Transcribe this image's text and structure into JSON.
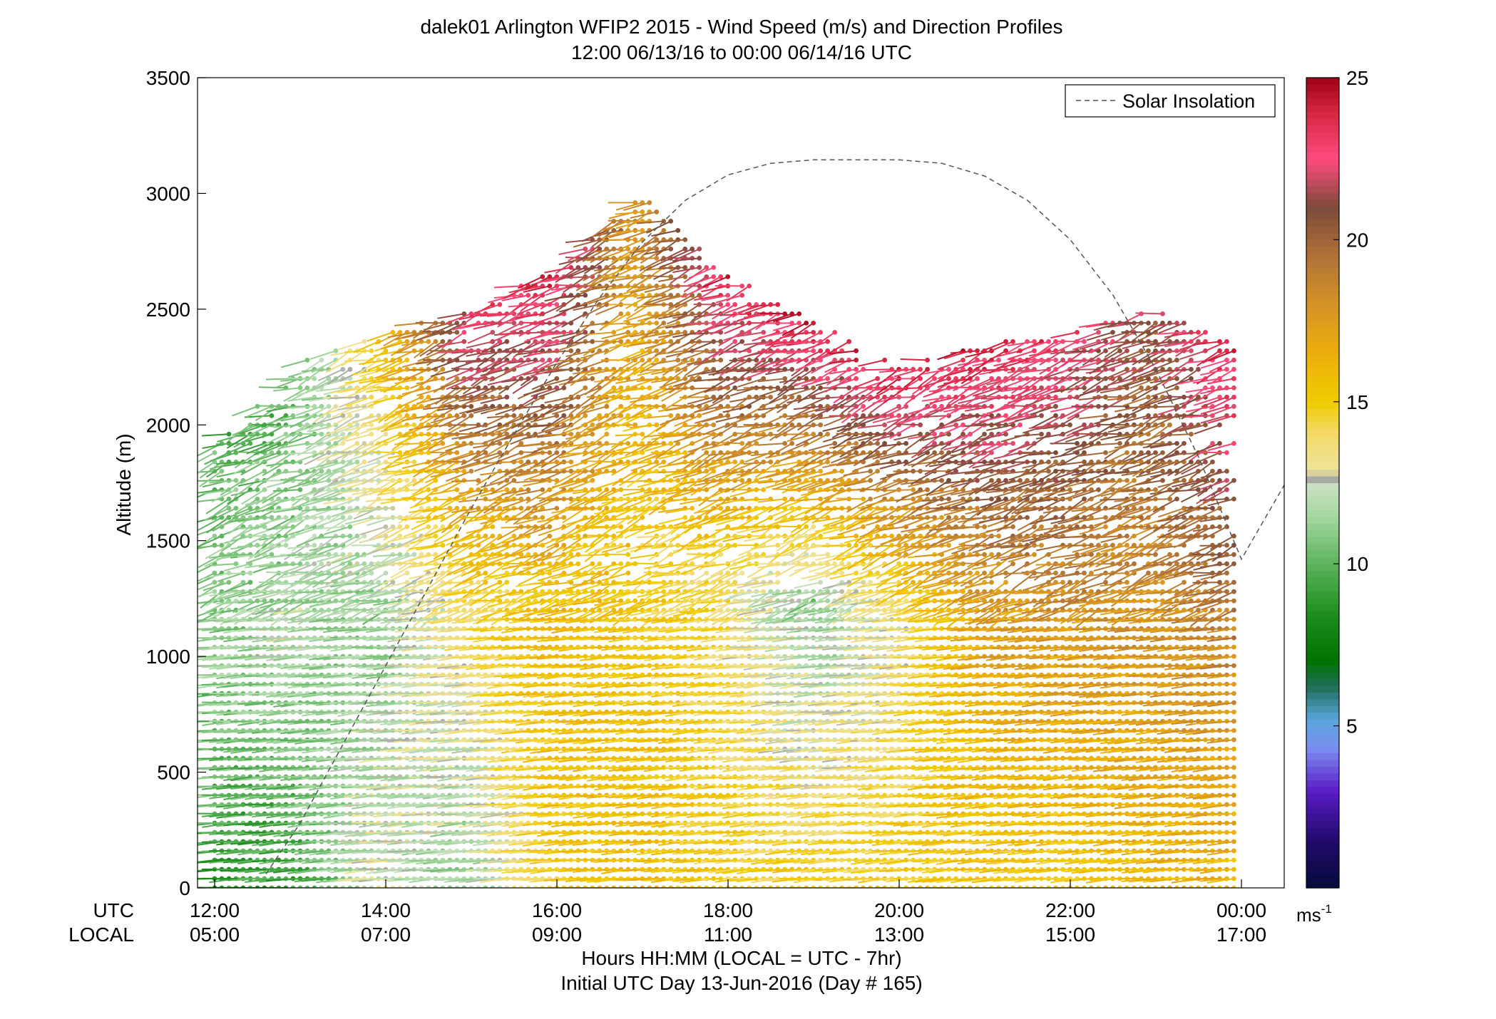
{
  "chart_data": {
    "type": "wind-barb-profile",
    "title": "dalek01 Arlington WFIP2 2015 - Wind Speed (m/s) and Direction Profiles",
    "subtitle": "12:00 06/13/16 to 00:00 06/14/16  UTC",
    "ylabel": "Altitude (m)",
    "xlabel": "Hours HH:MM  (LOCAL = UTC - 7hr)",
    "xlabel2": "Initial UTC Day 13-Jun-2016 (Day # 165)",
    "row_label_utc": "UTC",
    "row_label_local": "LOCAL",
    "x_range_hours_utc": [
      11.8,
      24.5
    ],
    "ylim": [
      0,
      3500
    ],
    "yticks": [
      0,
      500,
      1000,
      1500,
      2000,
      2500,
      3000,
      3500
    ],
    "xticks": [
      {
        "hour": 12,
        "utc": "12:00",
        "local": "05:00"
      },
      {
        "hour": 14,
        "utc": "14:00",
        "local": "07:00"
      },
      {
        "hour": 16,
        "utc": "16:00",
        "local": "09:00"
      },
      {
        "hour": 18,
        "utc": "18:00",
        "local": "11:00"
      },
      {
        "hour": 20,
        "utc": "20:00",
        "local": "13:00"
      },
      {
        "hour": 22,
        "utc": "22:00",
        "local": "15:00"
      },
      {
        "hour": 24,
        "utc": "00:00",
        "local": "17:00"
      }
    ],
    "legend": {
      "label": "Solar Insolation",
      "placement": "top-right",
      "style": "dashed",
      "color": "#555555"
    },
    "solar_curve": {
      "x_hours_utc": [
        12.6,
        13.0,
        13.5,
        14.0,
        14.5,
        15.0,
        15.5,
        16.0,
        16.5,
        17.0,
        17.5,
        18.0,
        18.5,
        19.0,
        19.5,
        20.0,
        20.5,
        21.0,
        21.5,
        22.0,
        22.5,
        23.0,
        23.5,
        24.0,
        24.5
      ],
      "altitude_m": [
        60,
        280,
        620,
        960,
        1300,
        1640,
        1960,
        2270,
        2550,
        2790,
        2970,
        3080,
        3130,
        3145,
        3145,
        3145,
        3130,
        3075,
        2970,
        2800,
        2560,
        2240,
        1860,
        1420,
        1740
      ]
    },
    "colorbar": {
      "ticks": [
        5,
        10,
        15,
        20,
        25
      ],
      "range": [
        0,
        25
      ],
      "unit": "ms",
      "unit_superscript": "-1",
      "stops": [
        {
          "v": 0,
          "c": "#070b3a"
        },
        {
          "v": 1.5,
          "c": "#220a6e"
        },
        {
          "v": 3,
          "c": "#5a1cc6"
        },
        {
          "v": 4.3,
          "c": "#7b8ef0"
        },
        {
          "v": 5.2,
          "c": "#5aa6dc"
        },
        {
          "v": 6.2,
          "c": "#1f6e5a"
        },
        {
          "v": 7,
          "c": "#007300"
        },
        {
          "v": 8.5,
          "c": "#1f8e1f"
        },
        {
          "v": 10,
          "c": "#5db35d"
        },
        {
          "v": 11.5,
          "c": "#a6d7a2"
        },
        {
          "v": 12.4,
          "c": "#c8e0c0"
        },
        {
          "v": 12.6,
          "c": "#a8a8a8"
        },
        {
          "v": 12.9,
          "c": "#ede39a"
        },
        {
          "v": 14,
          "c": "#f3da6a"
        },
        {
          "v": 15,
          "c": "#f0cc00"
        },
        {
          "v": 16.5,
          "c": "#ecae0c"
        },
        {
          "v": 18,
          "c": "#d49326"
        },
        {
          "v": 19.5,
          "c": "#b07238"
        },
        {
          "v": 21,
          "c": "#7c4a3a"
        },
        {
          "v": 22.5,
          "c": "#ff4b7e"
        },
        {
          "v": 24,
          "c": "#d4243e"
        },
        {
          "v": 25,
          "c": "#9e0018"
        }
      ]
    },
    "wind_field": {
      "time_range_hours_utc": [
        12.0,
        23.95
      ],
      "time_step_hours": 0.0833,
      "description": "Wind barbs at each profile time and range gate; colour = speed (m/s)",
      "profiles": [
        {
          "hour_utc": 12.0,
          "top_m": 1900,
          "speed_low": 9.0,
          "speed_mid": 11.0,
          "speed_top": 10.0
        },
        {
          "hour_utc": 13.0,
          "top_m": 2270,
          "speed_low": 9.0,
          "speed_mid": 12.0,
          "speed_top": 10.0
        },
        {
          "hour_utc": 14.0,
          "top_m": 2400,
          "speed_low": 13.0,
          "speed_mid": 11.0,
          "speed_top": 15.0
        },
        {
          "hour_utc": 15.0,
          "top_m": 2500,
          "speed_low": 11.0,
          "speed_mid": 14.0,
          "speed_top": 23.0
        },
        {
          "hour_utc": 16.0,
          "top_m": 2680,
          "speed_low": 15.0,
          "speed_mid": 16.0,
          "speed_top": 24.0
        },
        {
          "hour_utc": 17.0,
          "top_m": 3000,
          "speed_low": 16.0,
          "speed_mid": 15.0,
          "speed_top": 18.0
        },
        {
          "hour_utc": 18.0,
          "top_m": 2650,
          "speed_low": 15.0,
          "speed_mid": 14.0,
          "speed_top": 24.0
        },
        {
          "hour_utc": 19.0,
          "top_m": 2450,
          "speed_low": 15.0,
          "speed_mid": 11.0,
          "speed_top": 24.0
        },
        {
          "hour_utc": 20.0,
          "top_m": 2250,
          "speed_low": 15.0,
          "speed_mid": 13.0,
          "speed_top": 24.0
        },
        {
          "hour_utc": 21.0,
          "top_m": 2350,
          "speed_low": 15.0,
          "speed_mid": 17.0,
          "speed_top": 24.0
        },
        {
          "hour_utc": 22.0,
          "top_m": 2400,
          "speed_low": 15.0,
          "speed_mid": 18.0,
          "speed_top": 23.0
        },
        {
          "hour_utc": 23.0,
          "top_m": 2500,
          "speed_low": 16.0,
          "speed_mid": 18.0,
          "speed_top": 21.0
        },
        {
          "hour_utc": 23.95,
          "top_m": 2360,
          "speed_low": 16.0,
          "speed_mid": 19.0,
          "speed_top": 24.0
        }
      ]
    }
  }
}
